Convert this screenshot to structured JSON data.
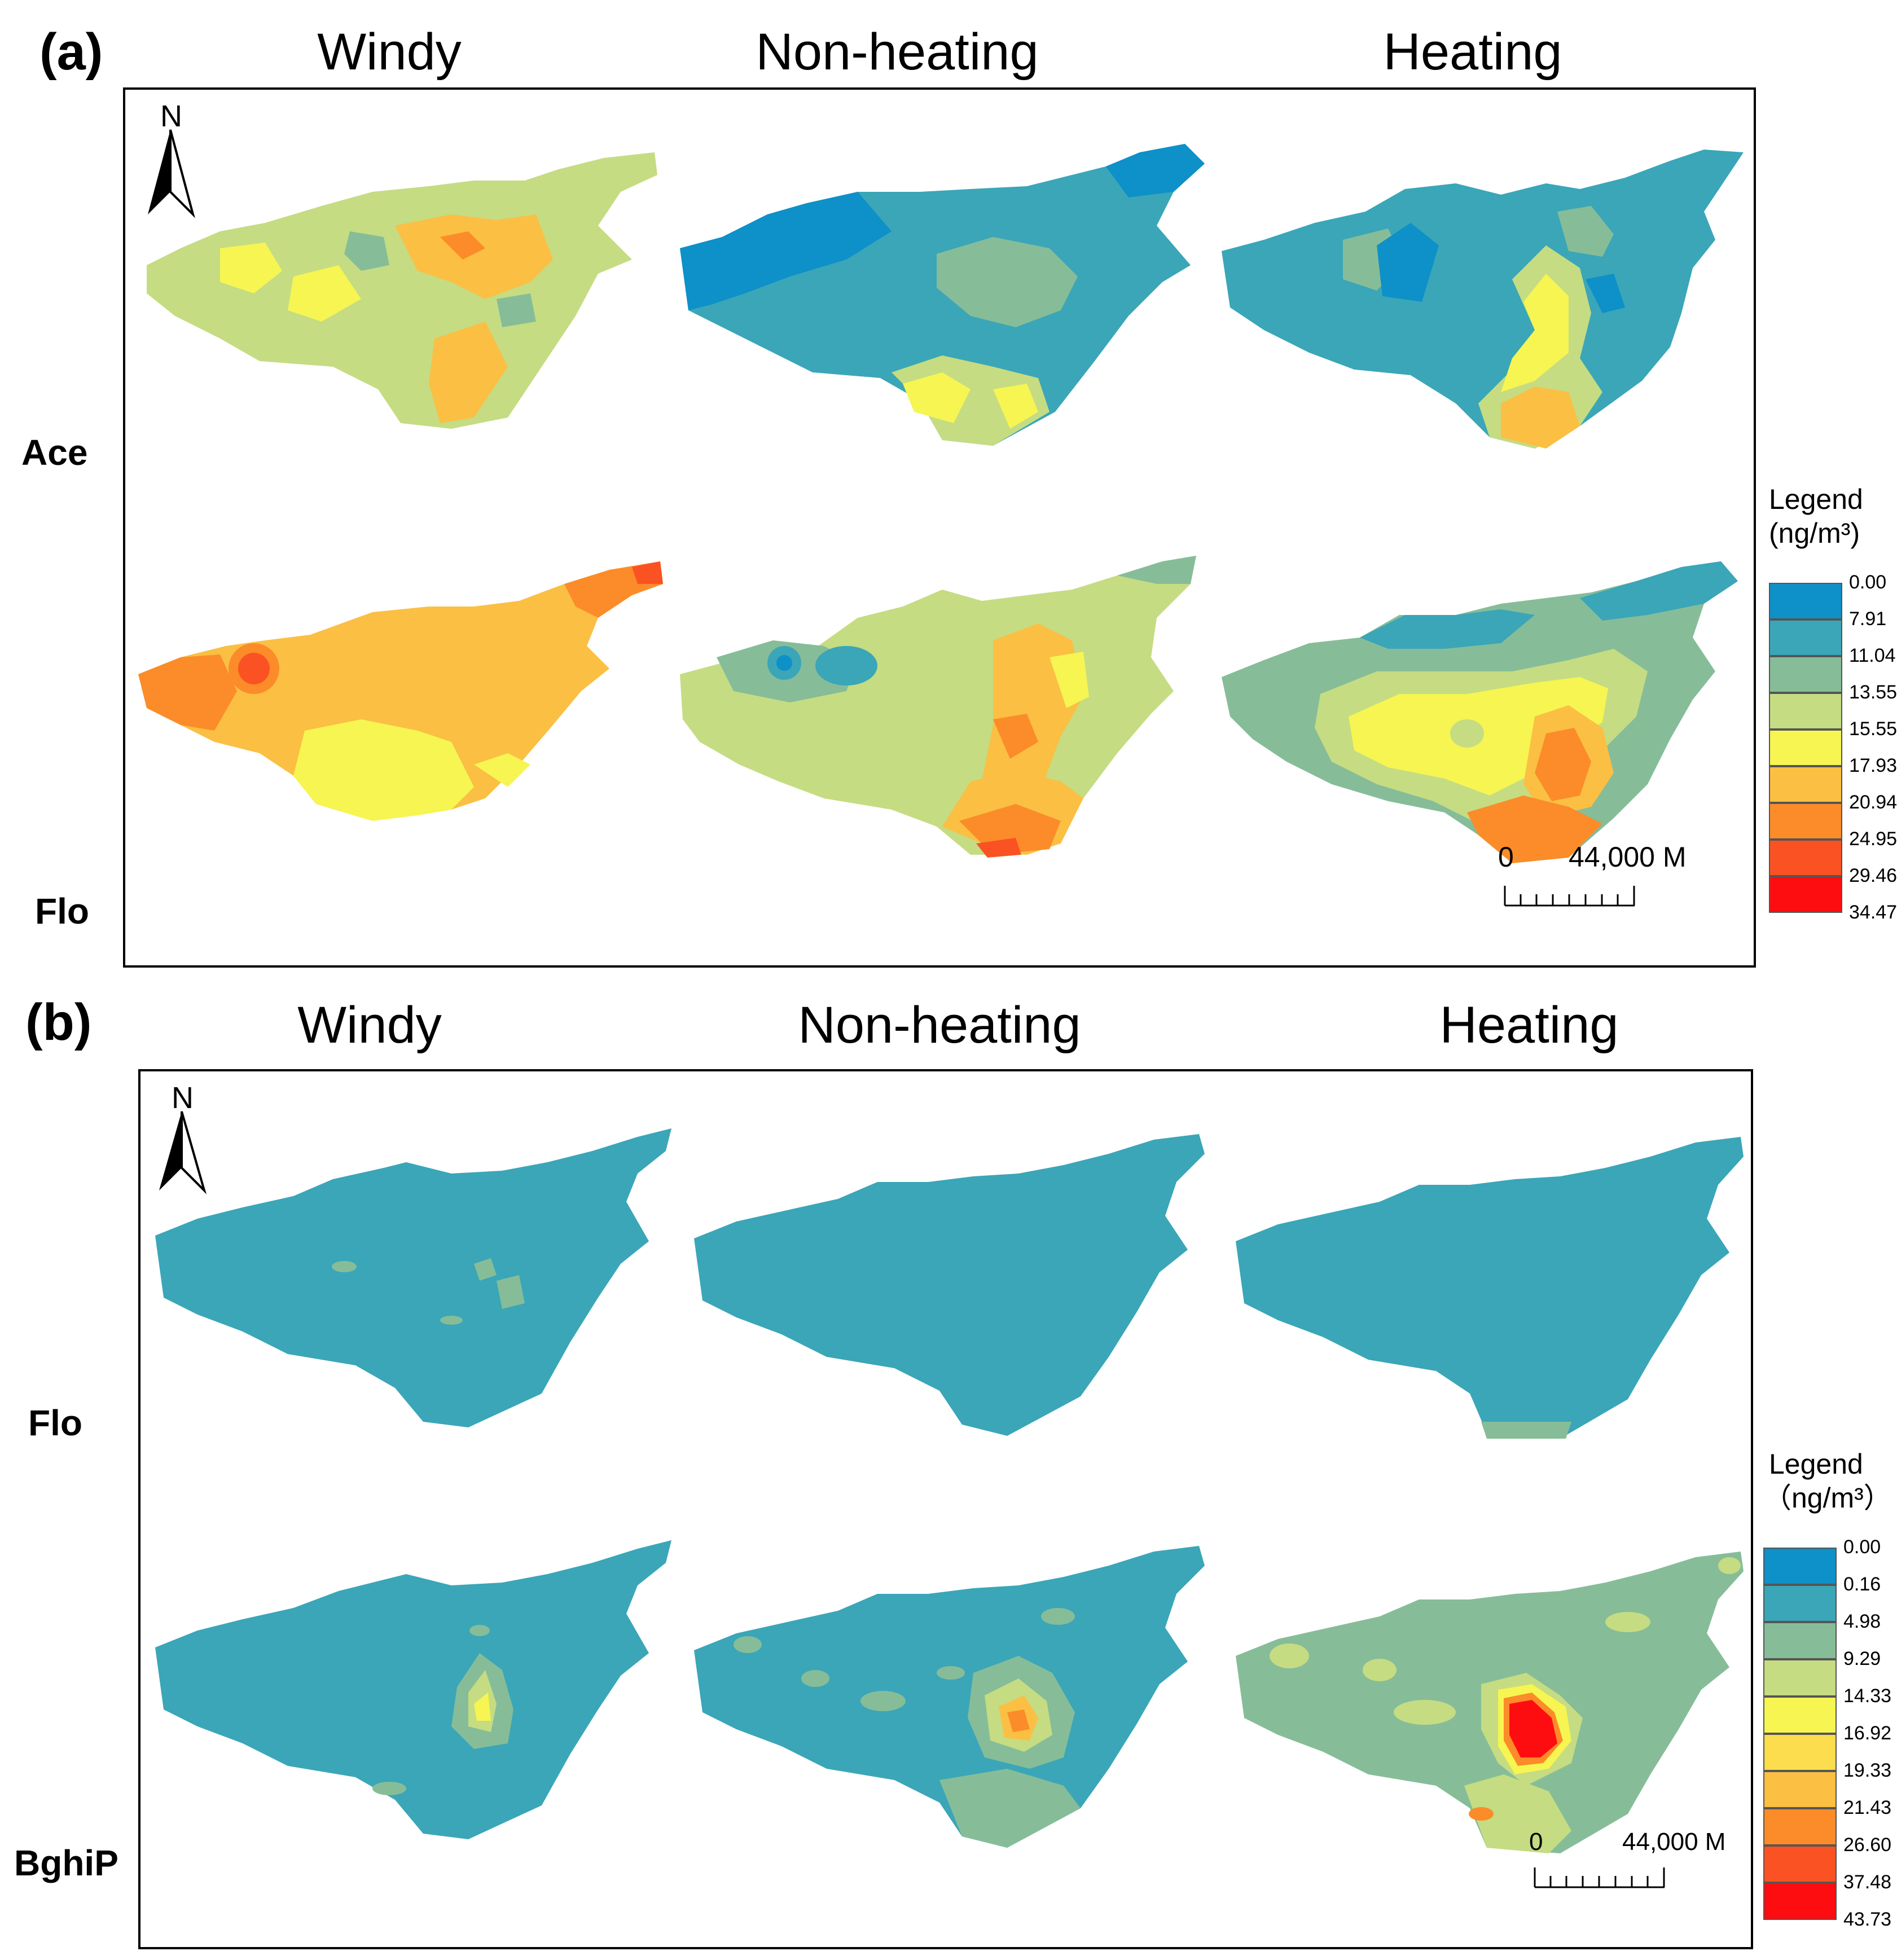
{
  "panels": [
    {
      "id": "a",
      "label": "(a)",
      "columns": [
        "Windy",
        "Non-heating",
        "Heating"
      ],
      "rows": [
        "Ace",
        "Flo"
      ],
      "north_label": "N",
      "scale": {
        "zero": "0",
        "distance": "44,000 M"
      },
      "legend": {
        "title": "Legend",
        "unit": "(ng/m³)",
        "values": [
          "0.00",
          "7.91",
          "11.04",
          "13.55",
          "15.55",
          "17.93",
          "20.94",
          "24.95",
          "29.46",
          "34.47"
        ],
        "colors": [
          "#0e90c8",
          "#3aa6b8",
          "#86bd98",
          "#c5dc82",
          "#f6f552",
          "#fbbf43",
          "#fb8c29",
          "#fb5223",
          "#fe0d10"
        ]
      },
      "maps": [
        {
          "row": "Ace",
          "col": "Windy",
          "base": "#c5dc82"
        },
        {
          "row": "Ace",
          "col": "Non-heating",
          "base": "#3aa6b8"
        },
        {
          "row": "Ace",
          "col": "Heating",
          "base": "#3aa6b8"
        },
        {
          "row": "Flo",
          "col": "Windy",
          "base": "#fbbf43"
        },
        {
          "row": "Flo",
          "col": "Non-heating",
          "base": "#c5dc82"
        },
        {
          "row": "Flo",
          "col": "Heating",
          "base": "#86bd98"
        }
      ]
    },
    {
      "id": "b",
      "label": "(b)",
      "columns": [
        "Windy",
        "Non-heating",
        "Heating"
      ],
      "rows": [
        "Flo",
        "BghiP"
      ],
      "north_label": "N",
      "scale": {
        "zero": "0",
        "distance": "44,000 M"
      },
      "legend": {
        "title": "Legend",
        "unit": "（ng/m³）",
        "values": [
          "0.00",
          "0.16",
          "4.98",
          "9.29",
          "14.33",
          "16.92",
          "19.33",
          "21.43",
          "26.60",
          "37.48",
          "43.73"
        ],
        "colors": [
          "#0e90c8",
          "#3aa6b8",
          "#86bd98",
          "#c5dc82",
          "#f6f552",
          "#fbdd4d",
          "#fbbf43",
          "#fb8c29",
          "#fb5223",
          "#fe0d10"
        ]
      },
      "maps": [
        {
          "row": "Flo",
          "col": "Windy",
          "base": "#3aa6b8"
        },
        {
          "row": "Flo",
          "col": "Non-heating",
          "base": "#3aa6b8"
        },
        {
          "row": "Flo",
          "col": "Heating",
          "base": "#3aa6b8"
        },
        {
          "row": "BghiP",
          "col": "Windy",
          "base": "#3aa6b8"
        },
        {
          "row": "BghiP",
          "col": "Non-heating",
          "base": "#3aa6b8"
        },
        {
          "row": "BghiP",
          "col": "Heating",
          "base": "#86bd98"
        }
      ]
    }
  ]
}
